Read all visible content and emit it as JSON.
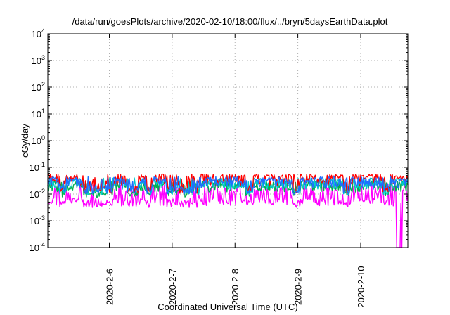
{
  "chart_data": {
    "type": "line",
    "title": "/data/run/goesPlots/archive/2020-02-10/18:00/flux/../bryn/5daysEarthData.plot",
    "xlabel": "Coordinated Universal Time (UTC)",
    "ylabel": "cGy/day",
    "y_scale": "log",
    "ylim": [
      0.0001,
      10000
    ],
    "y_ticks": [
      {
        "base": "10",
        "exp": "-4"
      },
      {
        "base": "10",
        "exp": "-3"
      },
      {
        "base": "10",
        "exp": "-2"
      },
      {
        "base": "10",
        "exp": "-1"
      },
      {
        "base": "10",
        "exp": "0"
      },
      {
        "base": "10",
        "exp": "1"
      },
      {
        "base": "10",
        "exp": "2"
      },
      {
        "base": "10",
        "exp": "3"
      },
      {
        "base": "10",
        "exp": "4"
      }
    ],
    "x_range_days": [
      "2020-02-05T00:30",
      "2020-02-10T18:00"
    ],
    "x_ticks": [
      "2020-2-6",
      "2020-2-7",
      "2020-2-8",
      "2020-2-9",
      "2020-2-10"
    ],
    "grid": true,
    "legend": "none",
    "series": [
      {
        "color": "#ff0000",
        "base_value": 0.035,
        "low_value": 0.015,
        "dip_value": 0.006
      },
      {
        "color": "#00b050",
        "base_value": 0.02,
        "low_value": 0.011,
        "dip_value": 0.0055
      },
      {
        "color": "#00cccc",
        "base_value": 0.025,
        "low_value": 0.013,
        "dip_value": 0.006
      },
      {
        "color": "#1e6fff",
        "base_value": 0.028,
        "low_value": 0.014,
        "dip_value": 0.0058
      },
      {
        "color": "#ff00ff",
        "base_value": 0.012,
        "low_value": 0.0045,
        "dip_value": 0.0001
      }
    ]
  }
}
